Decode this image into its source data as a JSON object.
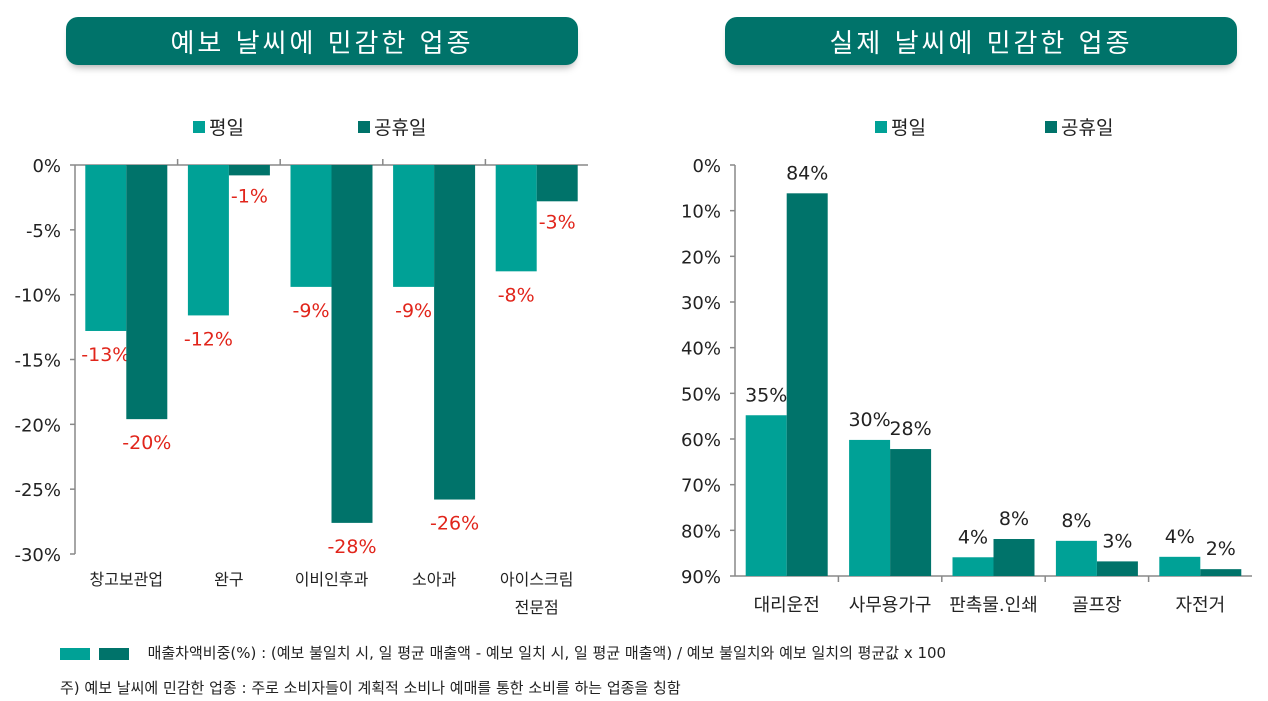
{
  "colors": {
    "weekday": "#00a196",
    "holiday": "#00736a",
    "banner": "#00736a",
    "label_red": "#e1251b"
  },
  "left_banner": "예보 날씨에 민감한 업종",
  "right_banner": "실제 날씨에 민감한 업종",
  "chart_data": [
    {
      "type": "bar",
      "title": "예보 날씨에 민감한 업종",
      "categories": [
        "창고보관업",
        "완구",
        "이비인후과",
        "소아과",
        "아이스크림 전문점"
      ],
      "category_lines": [
        [
          "창고보관업"
        ],
        [
          "완구"
        ],
        [
          "이비인후과"
        ],
        [
          "소아과"
        ],
        [
          "아이스크림",
          "전문점"
        ]
      ],
      "series": [
        {
          "name": "평일",
          "values": [
            -12.8,
            -11.6,
            -9.4,
            -9.4,
            -8.2
          ],
          "labels": [
            "-13%",
            "-12%",
            "-9%",
            "-9%",
            "-8%"
          ]
        },
        {
          "name": "공휴일",
          "values": [
            -19.6,
            -0.8,
            -27.6,
            -25.8,
            -2.8
          ],
          "labels": [
            "-20%",
            "-1%",
            "-28%",
            "-26%",
            "-3%"
          ]
        }
      ],
      "ylim": [
        -30,
        0
      ],
      "yticks": [
        "0%",
        "-5%",
        "-10%",
        "-15%",
        "-20%",
        "-25%",
        "-30%"
      ],
      "legend": "top",
      "grid": false
    },
    {
      "type": "bar",
      "title": "실제 날씨에 민감한 업종",
      "categories": [
        "대리운전",
        "사무용가구",
        "판촉물.인쇄",
        "골프장",
        "자전거"
      ],
      "category_lines": [
        [
          "대리운전"
        ],
        [
          "사무용가구"
        ],
        [
          "판촉물.인쇄"
        ],
        [
          "골프장"
        ],
        [
          "자전거"
        ]
      ],
      "series": [
        {
          "name": "평일",
          "values": [
            35.2,
            29.8,
            4.1,
            7.7,
            4.2
          ],
          "labels": [
            "35%",
            "30%",
            "4%",
            "8%",
            "4%"
          ]
        },
        {
          "name": "공휴일",
          "values": [
            83.8,
            27.8,
            8.1,
            3.2,
            1.5
          ],
          "labels": [
            "84%",
            "28%",
            "8%",
            "3%",
            "2%"
          ]
        }
      ],
      "ylim": [
        0,
        90
      ],
      "yticks": [
        "0%",
        "10%",
        "20%",
        "30%",
        "40%",
        "50%",
        "60%",
        "70%",
        "80%",
        "90%"
      ],
      "legend": "top",
      "grid": false
    }
  ],
  "legend": {
    "weekday": "평일",
    "holiday": "공휴일"
  },
  "footer": {
    "formula": "매출차액비중(%) : (예보 불일치 시, 일 평균 매출액 - 예보 일치 시, 일 평균 매출액) / 예보 불일치와 예보 일치의 평균값 x 100",
    "note": "주) 예보 날씨에 민감한 업종 : 주로 소비자들이 계획적 소비나 예매를 통한 소비를 하는 업종을 칭함"
  }
}
